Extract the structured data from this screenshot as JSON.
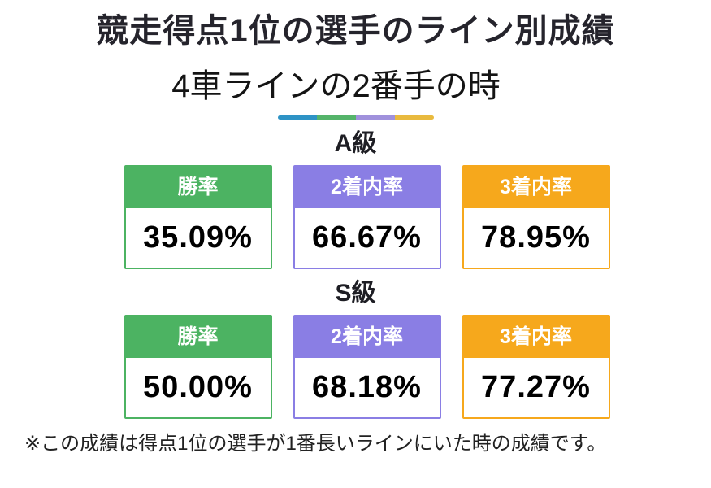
{
  "page": {
    "title": "競走得点1位の選手のライン別成績",
    "subtitle": "4車ラインの2番手の時",
    "footnote": "※この成績は得点1位の選手が1番長いラインにいた時の成績です。"
  },
  "colors": {
    "win": "#4CB362",
    "top2": "#8A7EE4",
    "top3": "#F6A81C",
    "title_text": "#25242C",
    "divider": [
      "#2E93C5",
      "#55B46A",
      "#A091DC",
      "#E9BA3E"
    ]
  },
  "sections": [
    {
      "label": "A級",
      "stats": [
        {
          "label": "勝率",
          "value": "35.09%"
        },
        {
          "label": "2着内率",
          "value": "66.67%"
        },
        {
          "label": "3着内率",
          "value": "78.95%"
        }
      ]
    },
    {
      "label": "S級",
      "stats": [
        {
          "label": "勝率",
          "value": "50.00%"
        },
        {
          "label": "2着内率",
          "value": "68.18%"
        },
        {
          "label": "3着内率",
          "value": "77.27%"
        }
      ]
    }
  ],
  "chart_data": {
    "type": "table",
    "title": "競走得点1位の選手のライン別成績",
    "subtitle": "4車ラインの2番手の時",
    "columns": [
      "勝率",
      "2着内率",
      "3着内率"
    ],
    "rows": [
      {
        "group": "A級",
        "values": [
          35.09,
          66.67,
          78.95
        ]
      },
      {
        "group": "S級",
        "values": [
          50.0,
          68.18,
          77.27
        ]
      }
    ],
    "unit": "%",
    "note": "※この成績は得点1位の選手が1番長いラインにいた時の成績です。"
  }
}
